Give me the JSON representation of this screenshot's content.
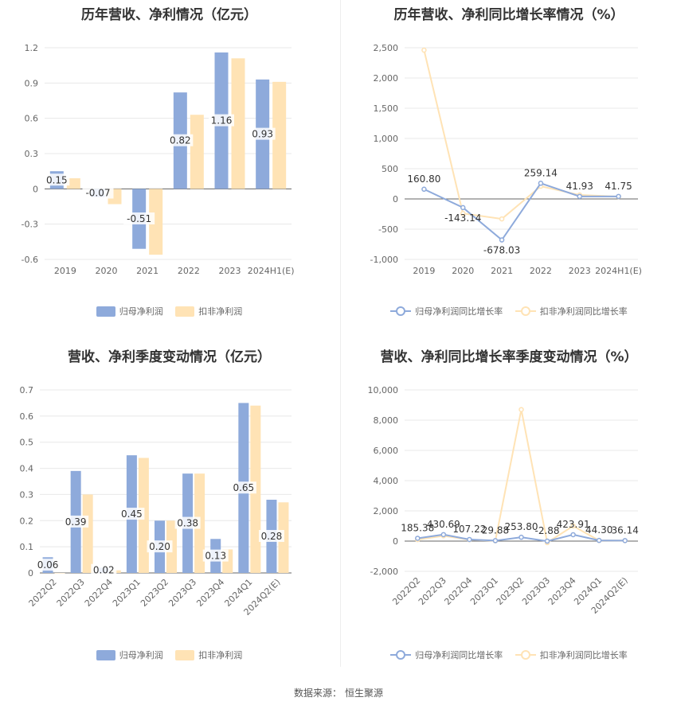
{
  "colors": {
    "primary": "#8eaadb",
    "secondary": "#ffd99a",
    "grid": "#e8e8e8",
    "axis": "#666666",
    "text": "#333333"
  },
  "legend": {
    "net_profit": "归母净利润",
    "deducted_profit": "扣非净利润",
    "net_growth": "归母净利润同比增长率",
    "deducted_growth": "扣非净利润同比增长率"
  },
  "source": {
    "label": "数据来源：",
    "name": "恒生聚源"
  },
  "chart_data": [
    {
      "type": "bar",
      "title": "历年营收、净利情况（亿元）",
      "categories": [
        "2019",
        "2020",
        "2021",
        "2022",
        "2023",
        "2024H1(E)"
      ],
      "yticks": [
        "-0.6",
        "-0.3",
        "0",
        "0.3",
        "0.6",
        "0.9",
        "1.2"
      ],
      "ylim": [
        -0.6,
        1.2
      ],
      "series": [
        {
          "name": "归母净利润",
          "values": [
            0.15,
            -0.07,
            -0.51,
            0.82,
            1.16,
            0.93
          ],
          "labels": [
            "0.15",
            "-0.07",
            "-0.51",
            "0.82",
            "1.16",
            "0.93"
          ]
        },
        {
          "name": "扣非净利润",
          "values": [
            0.09,
            -0.13,
            -0.56,
            0.63,
            1.11,
            0.91
          ]
        }
      ]
    },
    {
      "type": "line",
      "title": "历年营收、净利同比增长率情况（%）",
      "categories": [
        "2019",
        "2020",
        "2021",
        "2022",
        "2023",
        "2024H1(E)"
      ],
      "yticks": [
        "-1,000",
        "-500",
        "0",
        "500",
        "1,000",
        "1,500",
        "2,000",
        "2,500"
      ],
      "ylim": [
        -1000,
        2500
      ],
      "series": [
        {
          "name": "归母净利润同比增长率",
          "values": [
            160.8,
            -143.14,
            -678.03,
            259.14,
            41.93,
            41.75
          ],
          "labels": [
            "160.80",
            "-143.14",
            "-678.03",
            "259.14",
            "41.93",
            "41.75"
          ]
        },
        {
          "name": "扣非净利润同比增长率",
          "values": [
            2460,
            -240,
            -330,
            210,
            65,
            38
          ]
        }
      ]
    },
    {
      "type": "bar",
      "title": "营收、净利季度变动情况（亿元）",
      "categories": [
        "2022Q2",
        "2022Q3",
        "2022Q4",
        "2023Q1",
        "2023Q2",
        "2023Q3",
        "2023Q4",
        "2024Q1",
        "2024Q2(E)"
      ],
      "yticks": [
        "0",
        "0.1",
        "0.2",
        "0.3",
        "0.4",
        "0.5",
        "0.6",
        "0.7"
      ],
      "ylim": [
        0,
        0.7
      ],
      "series": [
        {
          "name": "归母净利润",
          "values": [
            0.06,
            0.39,
            0.02,
            0.45,
            0.2,
            0.38,
            0.13,
            0.65,
            0.28
          ],
          "labels": [
            "0.06",
            "0.39",
            "0.02",
            "0.45",
            "0.20",
            "0.38",
            "0.13",
            "0.65",
            "0.28"
          ]
        },
        {
          "name": "扣非净利润",
          "values": [
            0.0,
            0.3,
            0.01,
            0.44,
            0.2,
            0.38,
            0.09,
            0.64,
            0.27
          ]
        }
      ]
    },
    {
      "type": "line",
      "title": "营收、净利同比增长率季度变动情况（%）",
      "categories": [
        "2022Q2",
        "2022Q3",
        "2022Q4",
        "2023Q1",
        "2023Q2",
        "2023Q3",
        "2023Q4",
        "2024Q1",
        "2024Q2(E)"
      ],
      "yticks": [
        "-2,000",
        "0",
        "2,000",
        "4,000",
        "6,000",
        "8,000",
        "10,000"
      ],
      "ylim": [
        -2000,
        10000
      ],
      "series": [
        {
          "name": "归母净利润同比增长率",
          "values": [
            185.38,
            430.69,
            107.22,
            29.88,
            253.8,
            -2.88,
            423.91,
            44.3,
            36.14
          ],
          "labels": [
            "185.38",
            "430.69",
            "107.22",
            "29.88",
            "253.80",
            "-2.88",
            "423.91",
            "44.30",
            "36.14"
          ]
        },
        {
          "name": "扣非净利润同比增长率",
          "values": [
            100,
            350,
            90,
            20,
            8700,
            -100,
            1000,
            40,
            30
          ]
        }
      ]
    }
  ]
}
